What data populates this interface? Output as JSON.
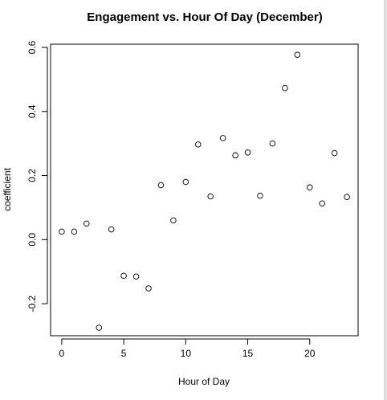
{
  "chart_data": {
    "type": "scatter",
    "title": "Engagement vs. Hour Of Day (December)",
    "xlabel": "Hour of Day",
    "ylabel": "coefficient",
    "xlim": [
      -0.9,
      23.9
    ],
    "ylim": [
      -0.3,
      0.61
    ],
    "xticks": [
      0,
      5,
      10,
      15,
      20
    ],
    "yticks": [
      -0.2,
      0.0,
      0.2,
      0.4,
      0.6
    ],
    "xtick_labels": [
      "0",
      "5",
      "10",
      "15",
      "20"
    ],
    "ytick_labels": [
      "-0.2",
      "0.0",
      "0.2",
      "0.4",
      "0.6"
    ],
    "grid": false,
    "marker": "open-circle",
    "x": [
      0,
      1,
      2,
      3,
      4,
      5,
      6,
      7,
      8,
      9,
      10,
      11,
      12,
      13,
      14,
      15,
      16,
      17,
      18,
      19,
      20,
      21,
      22,
      23
    ],
    "y": [
      0.025,
      0.025,
      0.05,
      -0.275,
      0.032,
      -0.113,
      -0.115,
      -0.152,
      0.17,
      0.06,
      0.18,
      0.297,
      0.135,
      0.317,
      0.263,
      0.272,
      0.137,
      0.3,
      0.473,
      0.577,
      0.163,
      0.113,
      0.27,
      0.133
    ]
  }
}
